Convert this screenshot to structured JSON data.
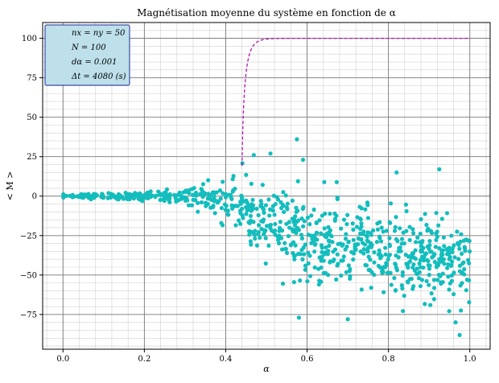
{
  "chart_data": {
    "type": "scatter",
    "title": "Magnétisation moyenne du système en fonction de α",
    "xlabel": "α",
    "ylabel": "< M >",
    "xlim": [
      -0.05,
      1.05
    ],
    "ylim": [
      -97,
      110
    ],
    "xticks": [
      0.0,
      0.2,
      0.4,
      0.6,
      0.8,
      1.0
    ],
    "xtick_labels": [
      "0.0",
      "0.2",
      "0.4",
      "0.6",
      "0.8",
      "1.0"
    ],
    "yticks": [
      -75,
      -50,
      -25,
      0,
      25,
      50,
      75,
      100
    ],
    "ytick_labels": [
      "−75",
      "−50",
      "−25",
      "0",
      "25",
      "50",
      "75",
      "100"
    ],
    "grid": true,
    "legend": {
      "placement": "top-left",
      "background": "#bde0eb",
      "border": "#1f2a9e",
      "lines": [
        {
          "label": "nx = ny = 50"
        },
        {
          "label": "N = 100"
        },
        {
          "label": "dα = 0.001"
        },
        {
          "label": "Δt = 4080 (s)"
        }
      ]
    },
    "series": [
      {
        "kind": "scatter",
        "color": "#13bdbd",
        "segments": [
          {
            "x_start": 0.0,
            "x_end": 0.2,
            "count": 110,
            "spread": [
              1.0,
              2.5
            ],
            "trend": [
              0.0,
              0.0
            ]
          },
          {
            "x_start": 0.2,
            "x_end": 0.33,
            "count": 70,
            "spread": [
              2.5,
              5.0
            ],
            "trend": [
              0.0,
              0.0
            ]
          },
          {
            "x_start": 0.33,
            "x_end": 0.45,
            "count": 80,
            "spread": [
              5.0,
              17.0
            ],
            "trend": [
              0.0,
              -5.0
            ]
          },
          {
            "x_start": 0.45,
            "x_end": 0.6,
            "count": 150,
            "spread": [
              17.0,
              24.0
            ],
            "trend": [
              -12.0,
              -28.0
            ]
          },
          {
            "x_start": 0.6,
            "x_end": 1.0,
            "count": 440,
            "spread": [
              24.0,
              22.0
            ],
            "trend": [
              -30.0,
              -42.0
            ]
          }
        ],
        "highlights": [
          {
            "x": 0.575,
            "y": 36
          },
          {
            "x": 0.469,
            "y": 26
          },
          {
            "x": 0.51,
            "y": 27
          },
          {
            "x": 0.59,
            "y": 23
          },
          {
            "x": 0.82,
            "y": 15
          },
          {
            "x": 0.925,
            "y": 17
          },
          {
            "x": 0.975,
            "y": -88
          },
          {
            "x": 0.965,
            "y": -80
          },
          {
            "x": 0.7,
            "y": -78
          },
          {
            "x": 0.58,
            "y": -77
          }
        ]
      },
      {
        "kind": "line",
        "style": "dashed",
        "color": "#b413b4",
        "x0": 0.4393,
        "x_start": 0.44,
        "x_end": 1.0,
        "y_start": 15,
        "y_max": 100,
        "tau": 0.006
      }
    ]
  }
}
